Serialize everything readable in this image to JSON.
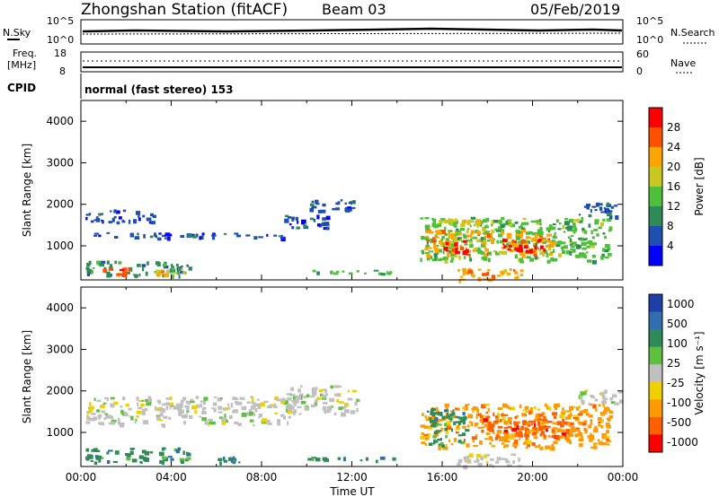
{
  "header": {
    "station": "Zhongshan Station (fitACF)",
    "beam": "Beam 03",
    "date": "05/Feb/2019",
    "cpid_label": "CPID",
    "cpid_value": "normal (fast stereo) 153"
  },
  "strip_labels": {
    "nsky": "N.Sky",
    "nsearch": "N.Search",
    "freq_line1": "Freq.",
    "freq_line2": "[MHz]",
    "nave": "Nave",
    "noise_tick_hi": "10^5",
    "noise_tick_lo": "10^0",
    "noise_rtick_hi": "10^5",
    "noise_rtick_lo": "10^0",
    "freq_tick_hi": "18",
    "freq_tick_lo": "8",
    "nave_tick_hi": "60",
    "nave_tick_lo": "0"
  },
  "colors": {
    "power_scale": [
      "#0000ff",
      "#1f4fb0",
      "#2e8b57",
      "#4fbf3a",
      "#c8c820",
      "#ffa500",
      "#ff5000",
      "#ff0000"
    ],
    "velocity_scale": [
      "#1f3fa8",
      "#2f6fb0",
      "#2e8b57",
      "#5fc040",
      "#c0c0c0",
      "#f0d000",
      "#ff9a00",
      "#ff6000",
      "#ff0000"
    ]
  },
  "chart_data": [
    {
      "type": "heatmap",
      "title": "Power",
      "ylabel": "Slant Range [km]",
      "xlabel": "",
      "x_ticks": [
        "00:00",
        "04:00",
        "08:00",
        "12:00",
        "16:00",
        "20:00",
        "00:00"
      ],
      "y_ticks": [
        "1000",
        "2000",
        "3000",
        "4000"
      ],
      "ylim": [
        180,
        4500
      ],
      "colorbar_label": "Power [dB]",
      "colorbar_ticks": [
        "4",
        "8",
        "12",
        "16",
        "20",
        "24",
        "28"
      ],
      "regions": [
        {
          "t0": 0.2,
          "t1": 3.2,
          "r0": 1580,
          "r1": 1880,
          "lvl": 1
        },
        {
          "t0": 0.3,
          "t1": 9.2,
          "r0": 1200,
          "r1": 1330,
          "lvl": 1
        },
        {
          "t0": 9.0,
          "t1": 11.2,
          "r0": 1450,
          "r1": 1750,
          "lvl": 1
        },
        {
          "t0": 10.0,
          "t1": 12.2,
          "r0": 1850,
          "r1": 2150,
          "lvl": 1
        },
        {
          "t0": 0.2,
          "t1": 4.8,
          "r0": 300,
          "r1": 650,
          "lvl": 2
        },
        {
          "t0": 0.8,
          "t1": 2.2,
          "r0": 330,
          "r1": 480,
          "lvl": 6
        },
        {
          "t0": 3.3,
          "t1": 4.6,
          "r0": 330,
          "r1": 450,
          "lvl": 5
        },
        {
          "t0": 10.0,
          "t1": 13.8,
          "r0": 330,
          "r1": 430,
          "lvl": 3
        },
        {
          "t0": 15.0,
          "t1": 23.4,
          "r0": 650,
          "r1": 1700,
          "lvl": 3
        },
        {
          "t0": 15.2,
          "t1": 20.8,
          "r0": 800,
          "r1": 1400,
          "lvl": 5
        },
        {
          "t0": 16.0,
          "t1": 17.2,
          "r0": 850,
          "r1": 1150,
          "lvl": 7
        },
        {
          "t0": 18.5,
          "t1": 20.5,
          "r0": 900,
          "r1": 1200,
          "lvl": 7
        },
        {
          "t0": 15.6,
          "t1": 19.0,
          "r0": 1500,
          "r1": 1680,
          "lvl": 4
        },
        {
          "t0": 22.0,
          "t1": 23.9,
          "r0": 1700,
          "r1": 2050,
          "lvl": 1
        },
        {
          "t0": 16.5,
          "t1": 19.5,
          "r0": 200,
          "r1": 500,
          "lvl": 5
        }
      ]
    },
    {
      "type": "heatmap",
      "title": "Velocity",
      "ylabel": "Slant Range [km]",
      "xlabel": "Time UT",
      "x_ticks": [
        "00:00",
        "04:00",
        "08:00",
        "12:00",
        "16:00",
        "20:00",
        "00:00"
      ],
      "y_ticks": [
        "1000",
        "2000",
        "3000",
        "4000"
      ],
      "ylim": [
        180,
        4500
      ],
      "colorbar_label": "Velocity [m s⁻¹]",
      "colorbar_ticks": [
        "1000",
        "500",
        "100",
        "25",
        "-25",
        "-100",
        "-500",
        "-1000"
      ],
      "regions": [
        {
          "t0": 0.2,
          "t1": 9.2,
          "r0": 1200,
          "r1": 1880,
          "lvl": 4
        },
        {
          "t0": 9.0,
          "t1": 12.2,
          "r0": 1450,
          "r1": 2150,
          "lvl": 4
        },
        {
          "t0": 0.2,
          "t1": 4.8,
          "r0": 300,
          "r1": 650,
          "lvl": 2
        },
        {
          "t0": 6.0,
          "t1": 7.0,
          "r0": 300,
          "r1": 450,
          "lvl": 2
        },
        {
          "t0": 10.0,
          "t1": 13.8,
          "r0": 330,
          "r1": 430,
          "lvl": 2
        },
        {
          "t0": 15.0,
          "t1": 23.4,
          "r0": 650,
          "r1": 1700,
          "lvl": 6
        },
        {
          "t0": 15.3,
          "t1": 17.0,
          "r0": 700,
          "r1": 1600,
          "lvl": 2
        },
        {
          "t0": 17.5,
          "t1": 21.5,
          "r0": 900,
          "r1": 1500,
          "lvl": 7
        },
        {
          "t0": 22.0,
          "t1": 23.9,
          "r0": 1700,
          "r1": 2050,
          "lvl": 4
        },
        {
          "t0": 16.5,
          "t1": 19.5,
          "r0": 200,
          "r1": 500,
          "lvl": 4
        }
      ]
    }
  ]
}
